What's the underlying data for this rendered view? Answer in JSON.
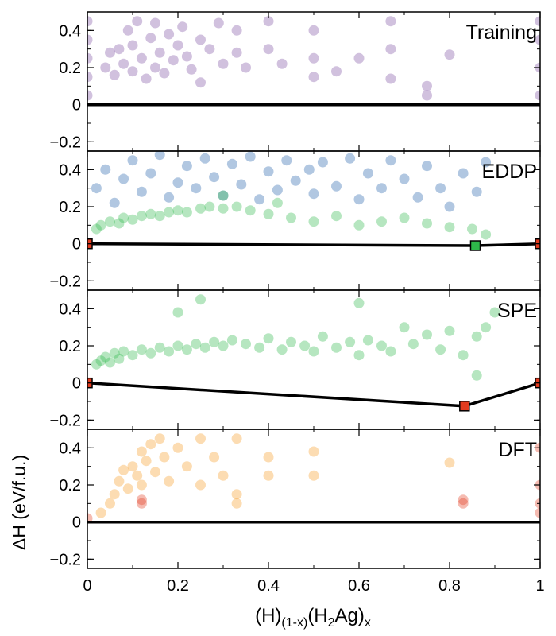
{
  "figure": {
    "xlabel": "(H)(1-x)(H2Ag)x",
    "ylabel": "ΔH (eV/f.u.)"
  },
  "chart_data": [
    {
      "type": "scatter",
      "title": "Training",
      "xlim": [
        0,
        1
      ],
      "ylim": [
        -0.25,
        0.5
      ],
      "xticks": [
        "0",
        "0.2",
        "0.4",
        "0.6",
        "0.8",
        "1"
      ],
      "yticks": [
        "0.4",
        "0.2",
        "0",
        "−0.2"
      ],
      "series": [
        {
          "color": "#7b4ea0",
          "points": [
            [
              0.0,
              0.05
            ],
            [
              0.0,
              0.15
            ],
            [
              0.0,
              0.25
            ],
            [
              0.0,
              0.35
            ],
            [
              0.0,
              0.45
            ],
            [
              0.04,
              0.2
            ],
            [
              0.05,
              0.28
            ],
            [
              0.06,
              0.16
            ],
            [
              0.07,
              0.3
            ],
            [
              0.08,
              0.22
            ],
            [
              0.09,
              0.4
            ],
            [
              0.1,
              0.18
            ],
            [
              0.1,
              0.32
            ],
            [
              0.11,
              0.45
            ],
            [
              0.12,
              0.25
            ],
            [
              0.13,
              0.14
            ],
            [
              0.14,
              0.36
            ],
            [
              0.15,
              0.2
            ],
            [
              0.15,
              0.44
            ],
            [
              0.16,
              0.28
            ],
            [
              0.17,
              0.17
            ],
            [
              0.18,
              0.38
            ],
            [
              0.19,
              0.24
            ],
            [
              0.2,
              0.32
            ],
            [
              0.21,
              0.42
            ],
            [
              0.22,
              0.26
            ],
            [
              0.23,
              0.19
            ],
            [
              0.25,
              0.35
            ],
            [
              0.25,
              0.12
            ],
            [
              0.27,
              0.3
            ],
            [
              0.29,
              0.44
            ],
            [
              0.3,
              0.22
            ],
            [
              0.33,
              0.4
            ],
            [
              0.33,
              0.28
            ],
            [
              0.35,
              0.2
            ],
            [
              0.4,
              0.45
            ],
            [
              0.4,
              0.3
            ],
            [
              0.43,
              0.22
            ],
            [
              0.5,
              0.4
            ],
            [
              0.5,
              0.25
            ],
            [
              0.5,
              0.15
            ],
            [
              0.55,
              0.18
            ],
            [
              0.6,
              0.25
            ],
            [
              0.67,
              0.45
            ],
            [
              0.67,
              0.3
            ],
            [
              0.67,
              0.14
            ],
            [
              0.75,
              0.1
            ],
            [
              0.75,
              0.05
            ],
            [
              0.8,
              0.27
            ],
            [
              1.0,
              0.05
            ],
            [
              1.0,
              0.2
            ],
            [
              1.0,
              0.35
            ],
            [
              1.0,
              0.45
            ]
          ]
        }
      ],
      "hull": [
        [
          0,
          0
        ],
        [
          1,
          0
        ]
      ],
      "hull_markers": []
    },
    {
      "type": "scatter",
      "title": "EDDP",
      "xlim": [
        0,
        1
      ],
      "ylim": [
        -0.25,
        0.5
      ],
      "xticks": [
        "0",
        "0.2",
        "0.4",
        "0.6",
        "0.8",
        "1"
      ],
      "yticks": [
        "0.4",
        "0.2",
        "0",
        "−0.2"
      ],
      "series": [
        {
          "color": "#1f5fa8",
          "points": [
            [
              0.02,
              0.3
            ],
            [
              0.04,
              0.4
            ],
            [
              0.06,
              0.22
            ],
            [
              0.08,
              0.35
            ],
            [
              0.1,
              0.45
            ],
            [
              0.12,
              0.28
            ],
            [
              0.14,
              0.38
            ],
            [
              0.16,
              0.48
            ],
            [
              0.18,
              0.25
            ],
            [
              0.2,
              0.33
            ],
            [
              0.22,
              0.42
            ],
            [
              0.24,
              0.3
            ],
            [
              0.26,
              0.46
            ],
            [
              0.28,
              0.36
            ],
            [
              0.3,
              0.26
            ],
            [
              0.32,
              0.43
            ],
            [
              0.34,
              0.32
            ],
            [
              0.36,
              0.47
            ],
            [
              0.38,
              0.24
            ],
            [
              0.4,
              0.39
            ],
            [
              0.42,
              0.29
            ],
            [
              0.44,
              0.45
            ],
            [
              0.46,
              0.34
            ],
            [
              0.49,
              0.4
            ],
            [
              0.5,
              0.27
            ],
            [
              0.52,
              0.44
            ],
            [
              0.55,
              0.31
            ],
            [
              0.58,
              0.46
            ],
            [
              0.6,
              0.24
            ],
            [
              0.62,
              0.38
            ],
            [
              0.65,
              0.3
            ],
            [
              0.67,
              0.45
            ],
            [
              0.7,
              0.35
            ],
            [
              0.73,
              0.25
            ],
            [
              0.75,
              0.42
            ],
            [
              0.78,
              0.3
            ],
            [
              0.8,
              0.2
            ],
            [
              0.83,
              0.38
            ],
            [
              0.86,
              0.28
            ],
            [
              0.88,
              0.44
            ]
          ]
        },
        {
          "color": "#2eb84a",
          "points": [
            [
              0.02,
              0.08
            ],
            [
              0.03,
              0.1
            ],
            [
              0.05,
              0.12
            ],
            [
              0.07,
              0.11
            ],
            [
              0.08,
              0.14
            ],
            [
              0.1,
              0.13
            ],
            [
              0.12,
              0.15
            ],
            [
              0.14,
              0.16
            ],
            [
              0.16,
              0.15
            ],
            [
              0.18,
              0.17
            ],
            [
              0.2,
              0.18
            ],
            [
              0.22,
              0.17
            ],
            [
              0.25,
              0.19
            ],
            [
              0.27,
              0.2
            ],
            [
              0.3,
              0.19
            ],
            [
              0.33,
              0.2
            ],
            [
              0.36,
              0.18
            ],
            [
              0.4,
              0.16
            ],
            [
              0.45,
              0.14
            ],
            [
              0.5,
              0.12
            ],
            [
              0.55,
              0.15
            ],
            [
              0.6,
              0.1
            ],
            [
              0.65,
              0.12
            ],
            [
              0.7,
              0.14
            ],
            [
              0.75,
              0.11
            ],
            [
              0.8,
              0.09
            ],
            [
              0.85,
              0.08
            ],
            [
              0.88,
              0.05
            ],
            [
              0.3,
              0.26
            ],
            [
              0.42,
              0.22
            ]
          ]
        }
      ],
      "hull": [
        [
          0,
          0
        ],
        [
          0.857,
          -0.01
        ],
        [
          1,
          0
        ]
      ],
      "hull_markers": [
        {
          "x": 0,
          "y": 0,
          "color": "#e23b1f"
        },
        {
          "x": 0.857,
          "y": -0.01,
          "color": "#2eb84a"
        },
        {
          "x": 1,
          "y": 0,
          "color": "#e23b1f"
        }
      ]
    },
    {
      "type": "scatter",
      "title": "SPE",
      "xlim": [
        0,
        1
      ],
      "ylim": [
        -0.25,
        0.5
      ],
      "xticks": [
        "0",
        "0.2",
        "0.4",
        "0.6",
        "0.8",
        "1"
      ],
      "yticks": [
        "0.4",
        "0.2",
        "0",
        "−0.2"
      ],
      "series": [
        {
          "color": "#2eb84a",
          "points": [
            [
              0.02,
              0.1
            ],
            [
              0.03,
              0.12
            ],
            [
              0.04,
              0.14
            ],
            [
              0.05,
              0.11
            ],
            [
              0.06,
              0.16
            ],
            [
              0.07,
              0.13
            ],
            [
              0.08,
              0.17
            ],
            [
              0.1,
              0.15
            ],
            [
              0.12,
              0.18
            ],
            [
              0.14,
              0.16
            ],
            [
              0.16,
              0.19
            ],
            [
              0.18,
              0.17
            ],
            [
              0.2,
              0.2
            ],
            [
              0.22,
              0.18
            ],
            [
              0.24,
              0.21
            ],
            [
              0.26,
              0.19
            ],
            [
              0.28,
              0.22
            ],
            [
              0.3,
              0.2
            ],
            [
              0.32,
              0.23
            ],
            [
              0.35,
              0.21
            ],
            [
              0.38,
              0.19
            ],
            [
              0.4,
              0.24
            ],
            [
              0.43,
              0.18
            ],
            [
              0.45,
              0.22
            ],
            [
              0.48,
              0.2
            ],
            [
              0.5,
              0.17
            ],
            [
              0.52,
              0.25
            ],
            [
              0.55,
              0.19
            ],
            [
              0.58,
              0.22
            ],
            [
              0.6,
              0.15
            ],
            [
              0.62,
              0.23
            ],
            [
              0.65,
              0.2
            ],
            [
              0.67,
              0.17
            ],
            [
              0.7,
              0.3
            ],
            [
              0.72,
              0.21
            ],
            [
              0.75,
              0.26
            ],
            [
              0.78,
              0.18
            ],
            [
              0.8,
              0.28
            ],
            [
              0.83,
              0.15
            ],
            [
              0.86,
              0.25
            ],
            [
              0.88,
              0.3
            ],
            [
              0.9,
              0.38
            ],
            [
              0.2,
              0.38
            ],
            [
              0.25,
              0.45
            ],
            [
              0.6,
              0.43
            ],
            [
              0.86,
              0.04
            ]
          ]
        }
      ],
      "hull": [
        [
          0,
          0
        ],
        [
          0.833,
          -0.125
        ],
        [
          1,
          0
        ]
      ],
      "hull_markers": [
        {
          "x": 0,
          "y": 0,
          "color": "#e23b1f"
        },
        {
          "x": 0.833,
          "y": -0.125,
          "color": "#e23b1f"
        },
        {
          "x": 1,
          "y": 0,
          "color": "#e23b1f"
        }
      ]
    },
    {
      "type": "scatter",
      "title": "DFT",
      "xlim": [
        0,
        1
      ],
      "ylim": [
        -0.25,
        0.5
      ],
      "xticks": [
        "0",
        "0.2",
        "0.4",
        "0.6",
        "0.8",
        "1"
      ],
      "yticks": [
        "0.4",
        "0.2",
        "0",
        "−0.2"
      ],
      "series": [
        {
          "color": "#f59a23",
          "points": [
            [
              0.03,
              0.05
            ],
            [
              0.05,
              0.1
            ],
            [
              0.06,
              0.15
            ],
            [
              0.07,
              0.22
            ],
            [
              0.08,
              0.28
            ],
            [
              0.09,
              0.18
            ],
            [
              0.1,
              0.3
            ],
            [
              0.11,
              0.25
            ],
            [
              0.12,
              0.38
            ],
            [
              0.13,
              0.33
            ],
            [
              0.14,
              0.42
            ],
            [
              0.15,
              0.27
            ],
            [
              0.16,
              0.45
            ],
            [
              0.17,
              0.35
            ],
            [
              0.18,
              0.22
            ],
            [
              0.2,
              0.4
            ],
            [
              0.22,
              0.3
            ],
            [
              0.25,
              0.45
            ],
            [
              0.25,
              0.2
            ],
            [
              0.28,
              0.35
            ],
            [
              0.3,
              0.25
            ],
            [
              0.33,
              0.45
            ],
            [
              0.33,
              0.15
            ],
            [
              0.33,
              0.1
            ],
            [
              0.4,
              0.25
            ],
            [
              0.4,
              0.35
            ],
            [
              0.5,
              0.38
            ],
            [
              0.5,
              0.25
            ],
            [
              0.8,
              0.32
            ],
            [
              0.12,
              0.2
            ]
          ]
        },
        {
          "color": "#e23b1f",
          "points": [
            [
              0.0,
              0.02
            ],
            [
              0.12,
              0.1
            ],
            [
              0.12,
              0.12
            ],
            [
              0.83,
              0.1
            ],
            [
              0.83,
              0.12
            ],
            [
              1.0,
              0.05
            ],
            [
              1.0,
              0.1
            ],
            [
              1.0,
              0.2
            ],
            [
              1.0,
              0.4
            ]
          ]
        }
      ],
      "hull": [
        [
          0,
          0
        ],
        [
          1,
          0
        ]
      ],
      "hull_markers": []
    }
  ]
}
